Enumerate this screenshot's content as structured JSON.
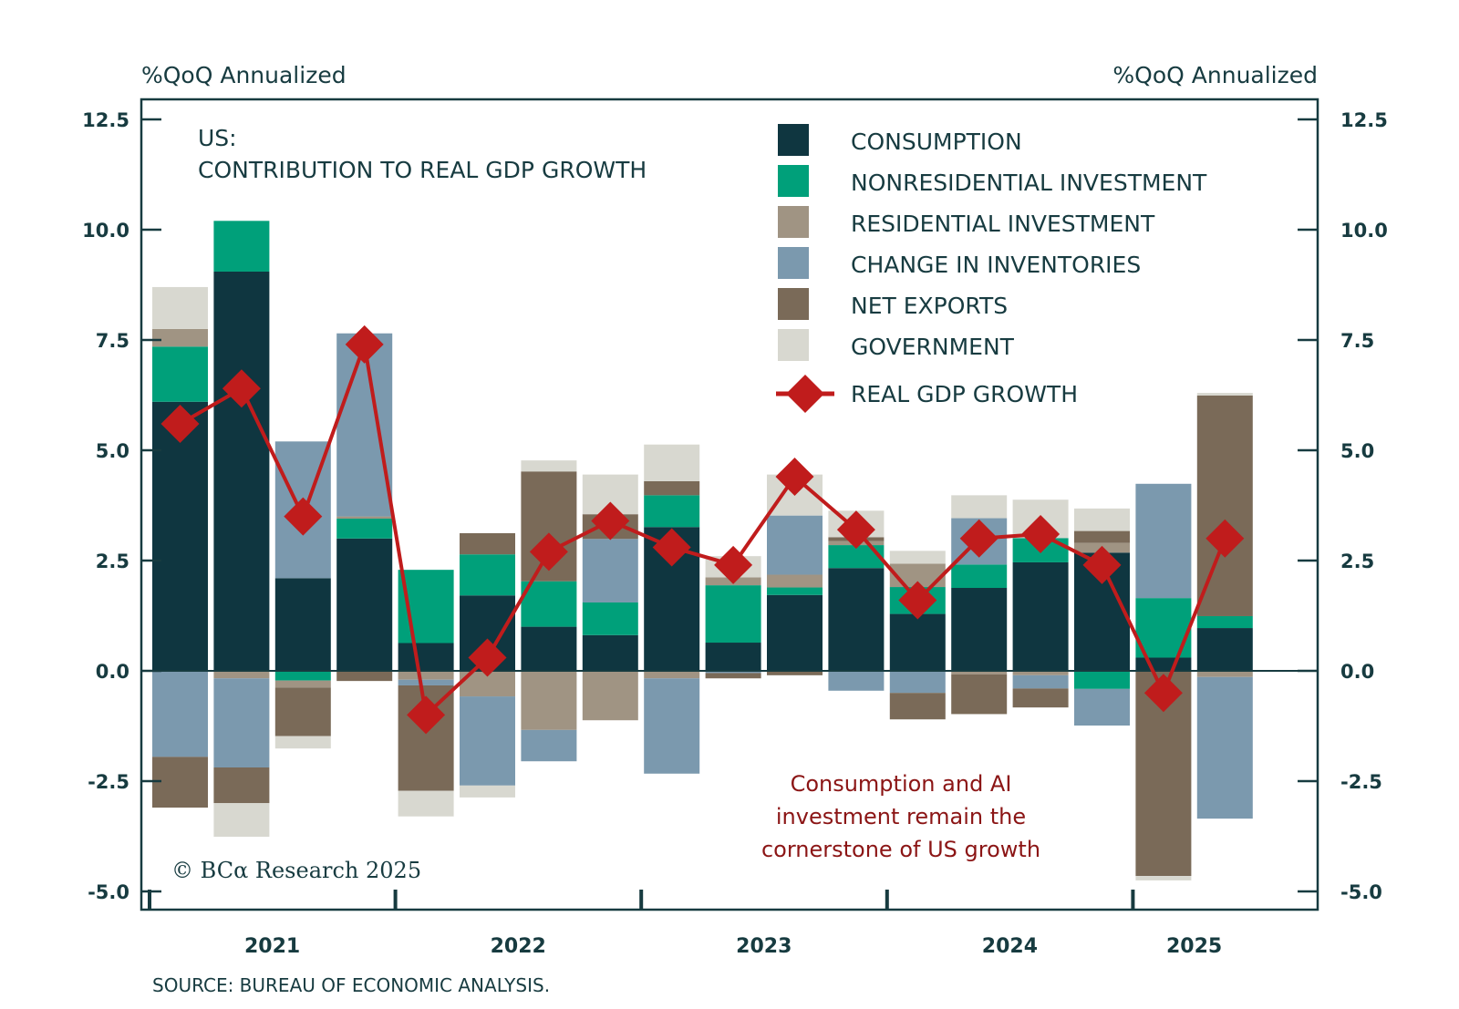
{
  "chart_data": {
    "type": "bar",
    "stacked": true,
    "title": "US:",
    "subtitle": "CONTRIBUTION TO REAL GDP GROWTH",
    "ylabel_left": "%QoQ Annualized",
    "ylabel_right": "%QoQ Annualized",
    "xlabel": "",
    "ylim": [
      -5.0,
      12.5
    ],
    "yticks": [
      "12.5",
      "10.0",
      "7.5",
      "5.0",
      "2.5",
      "0.0",
      "-2.5",
      "-5.0"
    ],
    "ytick_values": [
      12.5,
      10.0,
      7.5,
      5.0,
      2.5,
      0.0,
      -2.5,
      -5.0
    ],
    "x_year_labels": [
      "2021",
      "2022",
      "2023",
      "2024",
      "2025"
    ],
    "categories": [
      "2021Q1",
      "2021Q2",
      "2021Q3",
      "2021Q4",
      "2022Q1",
      "2022Q2",
      "2022Q3",
      "2022Q4",
      "2023Q1",
      "2023Q2",
      "2023Q3",
      "2023Q4",
      "2024Q1",
      "2024Q2",
      "2024Q3",
      "2024Q4",
      "2025Q1",
      "2025Q2"
    ],
    "series": [
      {
        "name": "CONSUMPTION",
        "color": "#0f3640",
        "values": [
          6.1,
          9.05,
          2.1,
          3.0,
          0.63,
          1.71,
          1.0,
          0.81,
          3.26,
          0.64,
          1.72,
          2.33,
          1.29,
          1.88,
          2.46,
          2.68,
          0.3,
          0.97
        ]
      },
      {
        "name": "NONRESIDENTIAL INVESTMENT",
        "color": "#00a07a",
        "values": [
          1.25,
          1.15,
          -0.22,
          0.45,
          1.66,
          0.93,
          1.03,
          0.74,
          0.72,
          1.3,
          0.17,
          0.52,
          0.61,
          0.53,
          0.55,
          -0.41,
          1.35,
          0.27
        ]
      },
      {
        "name": "RESIDENTIAL INVESTMENT",
        "color": "#a09483",
        "values": [
          0.4,
          -0.17,
          -0.16,
          0.05,
          -0.2,
          -0.58,
          -1.34,
          -1.12,
          -0.17,
          0.18,
          0.29,
          0.09,
          0.53,
          -0.08,
          -0.1,
          0.22,
          0.0,
          -0.14
        ]
      },
      {
        "name": "CHANGE IN INVENTORIES",
        "color": "#7b99ae",
        "values": [
          -1.95,
          -2.02,
          3.1,
          4.15,
          -0.13,
          -2.02,
          -0.71,
          1.44,
          -2.16,
          -0.05,
          1.34,
          -0.45,
          -0.5,
          1.05,
          -0.3,
          -0.83,
          2.59,
          -3.21
        ]
      },
      {
        "name": "NET EXPORTS",
        "color": "#7a6a58",
        "values": [
          -1.15,
          -0.81,
          -1.1,
          -0.23,
          -2.39,
          0.48,
          2.49,
          0.56,
          0.32,
          -0.12,
          -0.1,
          0.09,
          -0.6,
          -0.9,
          -0.43,
          0.27,
          -4.65,
          5.0
        ]
      },
      {
        "name": "GOVERNMENT",
        "color": "#d8d8d0",
        "values": [
          0.95,
          -0.76,
          -0.28,
          0.0,
          -0.58,
          -0.27,
          0.25,
          0.9,
          0.83,
          0.48,
          0.93,
          0.6,
          0.29,
          0.52,
          0.87,
          0.51,
          -0.1,
          0.06
        ]
      }
    ],
    "line_series": {
      "name": "REAL GDP GROWTH",
      "color": "#c01c1c",
      "values": [
        5.6,
        6.4,
        3.5,
        7.4,
        -1.0,
        0.3,
        2.7,
        3.4,
        2.8,
        2.4,
        4.4,
        3.2,
        1.6,
        3.0,
        3.1,
        2.4,
        -0.5,
        3.0
      ]
    },
    "legend_position": "top-right",
    "grid": false,
    "annotation": [
      "Consumption and AI",
      "investment remain the",
      "cornerstone of US growth"
    ],
    "annotation_color": "#8b1515",
    "copyright": "© BCα Research 2025",
    "source": "SOURCE: BUREAU OF ECONOMIC ANALYSIS."
  }
}
